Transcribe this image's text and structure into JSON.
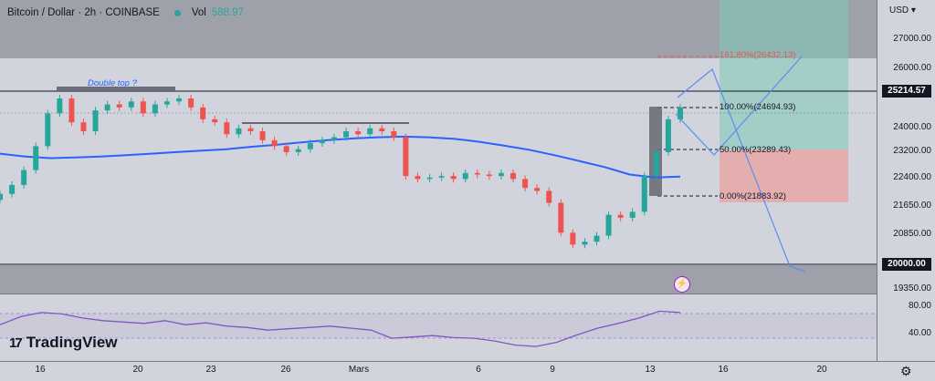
{
  "header": {
    "symbol": "Bitcoin / Dollar · 2h · COINBASE",
    "vol_label": "Vol",
    "vol_value": "588.97"
  },
  "currency": "USD",
  "price_ticks": [
    "27000.00",
    "26000.00",
    "25214.57",
    "24000.00",
    "23200.00",
    "22400.00",
    "21650.00",
    "20850.00",
    "20000.00",
    "19350.00"
  ],
  "rsi_ticks": [
    "80.00",
    "40.00"
  ],
  "time_ticks": [
    "16",
    "20",
    "23",
    "26",
    "Mars",
    "6",
    "9",
    "13",
    "16",
    "20"
  ],
  "annotations": {
    "double_top": "Double top ?"
  },
  "fibonacci": [
    {
      "label": "161.80%(26432.13)"
    },
    {
      "label": "100.00%(24694.93)"
    },
    {
      "label": "50.00%(23289.43)"
    },
    {
      "label": "0.00%(21883.92)"
    }
  ],
  "logo": "TradingView",
  "colors": {
    "up": "#26a69a",
    "down": "#ef5350",
    "ma": "#2962ff",
    "rsi": "#7e57c2",
    "zone": "#9598a1",
    "tp_zone": "#7ec8b8",
    "sl_zone": "#e8a4a4"
  },
  "chart_data": {
    "type": "candlestick",
    "title": "Bitcoin / Dollar · 2h · COINBASE",
    "x_labels": [
      "16",
      "20",
      "23",
      "26",
      "Mars",
      "6",
      "9",
      "13",
      "16",
      "20"
    ],
    "ylim": [
      19350,
      27400
    ],
    "key_levels": {
      "resistance": 25214.57,
      "support": 20000.0,
      "neckline": 24100
    },
    "series": [
      {
        "name": "close",
        "values": [
          21800,
          22100,
          22600,
          23400,
          24500,
          25000,
          24200,
          23900,
          24600,
          24800,
          24700,
          24900,
          24500,
          24800,
          24900,
          25000,
          24700,
          24300,
          24200,
          23800,
          24000,
          23900,
          23600,
          23400,
          23200,
          23300,
          23500,
          23600,
          23700,
          23900,
          23800,
          24000,
          23900,
          23700,
          22400,
          22300,
          22350,
          22400,
          22300,
          22500,
          22450,
          22400,
          22500,
          22300,
          22000,
          21900,
          21500,
          20500,
          20100,
          20200,
          20400,
          21100,
          21000,
          21200,
          22400,
          23200,
          24300,
          24700
        ]
      },
      {
        "name": "MA",
        "values": [
          23150,
          23050,
          23000,
          23020,
          23050,
          23100,
          23150,
          23200,
          23250,
          23300,
          23380,
          23450,
          23530,
          23600,
          23660,
          23700,
          23720,
          23700,
          23650,
          23550,
          23420,
          23280,
          23100,
          22900,
          22700,
          22450,
          22350,
          22380
        ]
      },
      {
        "name": "RSI",
        "values": [
          60,
          72,
          78,
          76,
          70,
          66,
          64,
          62,
          66,
          60,
          63,
          58,
          56,
          52,
          54,
          56,
          58,
          55,
          52,
          40,
          42,
          44,
          41,
          40,
          36,
          30,
          28,
          34,
          45,
          55,
          62,
          70,
          80,
          78
        ]
      }
    ]
  }
}
